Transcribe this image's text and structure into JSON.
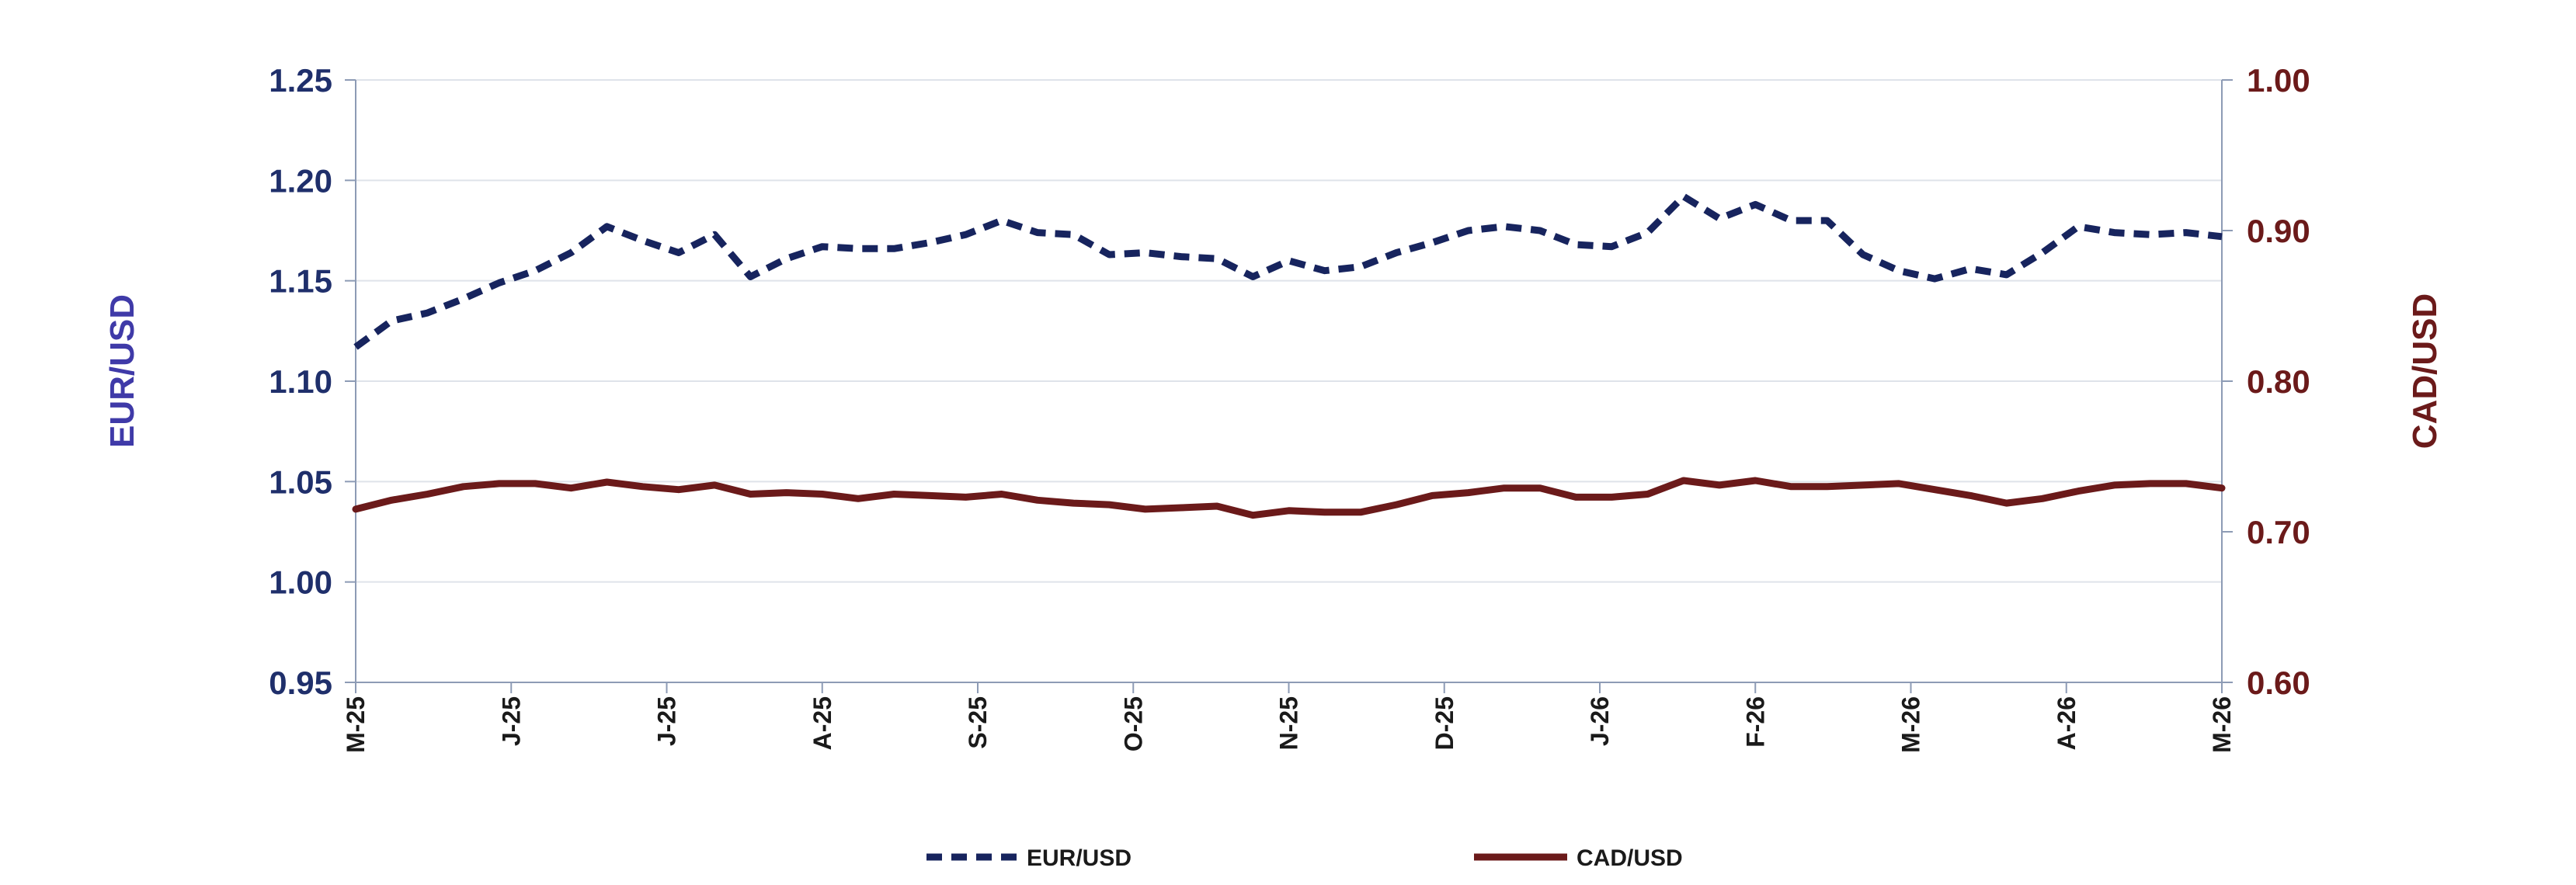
{
  "chart_data": {
    "type": "line",
    "x_labels": [
      "M-25",
      "J-25",
      "J-25",
      "A-25",
      "S-25",
      "O-25",
      "N-25",
      "D-25",
      "J-26",
      "F-26",
      "M-26",
      "A-26",
      "M-26"
    ],
    "y_left": {
      "label": "EUR/USD",
      "ylim": [
        0.95,
        1.25
      ],
      "ticks": [
        "0.95",
        "1.00",
        "1.05",
        "1.10",
        "1.15",
        "1.20",
        "1.25"
      ]
    },
    "y_right": {
      "label": "CAD/USD",
      "ylim": [
        0.6,
        1.0
      ],
      "ticks": [
        "0.60",
        "0.70",
        "0.80",
        "0.90",
        "1.00"
      ]
    },
    "grid": true,
    "legend": {
      "placement": "bottom-center"
    },
    "series": [
      {
        "name": "EUR/USD",
        "axis": "left",
        "style": "dashed",
        "color": "#17245e",
        "values": [
          1.117,
          1.13,
          1.134,
          1.141,
          1.149,
          1.155,
          1.164,
          1.177,
          1.17,
          1.164,
          1.173,
          1.152,
          1.161,
          1.167,
          1.166,
          1.166,
          1.169,
          1.173,
          1.18,
          1.174,
          1.173,
          1.163,
          1.164,
          1.162,
          1.161,
          1.152,
          1.16,
          1.155,
          1.157,
          1.164,
          1.169,
          1.175,
          1.177,
          1.175,
          1.168,
          1.167,
          1.174,
          1.192,
          1.181,
          1.188,
          1.18,
          1.18,
          1.163,
          1.155,
          1.151,
          1.156,
          1.153,
          1.164,
          1.177,
          1.174,
          1.173,
          1.174,
          1.172
        ]
      },
      {
        "name": "CAD/USD",
        "axis": "right",
        "style": "solid",
        "color": "#6b1a1a",
        "values": [
          0.715,
          0.721,
          0.725,
          0.73,
          0.732,
          0.732,
          0.729,
          0.733,
          0.73,
          0.728,
          0.731,
          0.725,
          0.726,
          0.725,
          0.722,
          0.725,
          0.724,
          0.723,
          0.725,
          0.721,
          0.719,
          0.718,
          0.715,
          0.716,
          0.717,
          0.711,
          0.714,
          0.713,
          0.713,
          0.718,
          0.724,
          0.726,
          0.729,
          0.729,
          0.723,
          0.723,
          0.725,
          0.734,
          0.731,
          0.734,
          0.73,
          0.73,
          0.731,
          0.732,
          0.728,
          0.724,
          0.719,
          0.722,
          0.727,
          0.731,
          0.732,
          0.732,
          0.729
        ]
      }
    ]
  }
}
